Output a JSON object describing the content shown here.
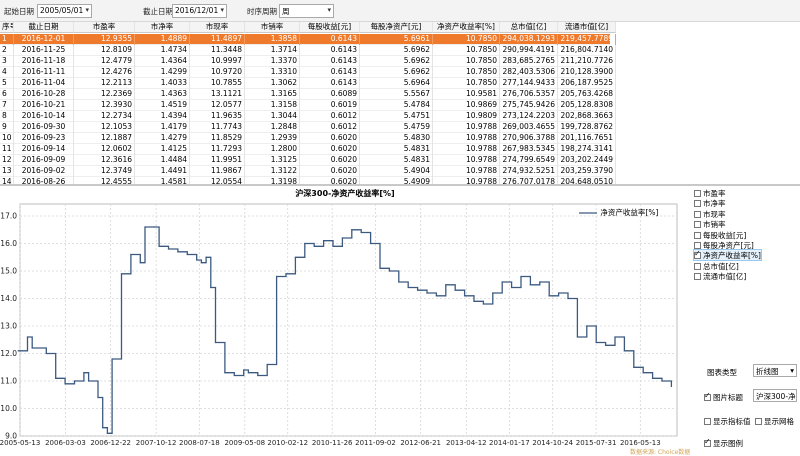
{
  "toolbar": {
    "start_label": "起始日期",
    "start_value": "2005/05/01",
    "end_label": "截止日期",
    "end_value": "2016/12/01",
    "period_label": "时序周期",
    "period_value": "周"
  },
  "table": {
    "columns": [
      "序号",
      "截止日期",
      "市盈率",
      "市净率",
      "市现率",
      "市销率",
      "每股收益[元]",
      "每股净资产[元]",
      "净资产收益率[%]",
      "总市值[亿]",
      "流通市值[亿]"
    ],
    "rows": [
      [
        "1",
        "2016-12-01",
        "12.9355",
        "1.4889",
        "11.4897",
        "1.3858",
        "0.6143",
        "5.6961",
        "10.7850",
        "294,038.1293",
        "219,457.7789"
      ],
      [
        "2",
        "2016-11-25",
        "12.8109",
        "1.4734",
        "11.3448",
        "1.3714",
        "0.6143",
        "5.6962",
        "10.7850",
        "290,994.4191",
        "216,804.7140"
      ],
      [
        "3",
        "2016-11-18",
        "12.4779",
        "1.4364",
        "10.9997",
        "1.3370",
        "0.6143",
        "5.6962",
        "10.7850",
        "283,685.2765",
        "211,210.7726"
      ],
      [
        "4",
        "2016-11-11",
        "12.4276",
        "1.4299",
        "10.9720",
        "1.3310",
        "0.6143",
        "5.6962",
        "10.7850",
        "282,403.5306",
        "210,128.3900"
      ],
      [
        "5",
        "2016-11-04",
        "12.2113",
        "1.4033",
        "10.7855",
        "1.3062",
        "0.6143",
        "5.6964",
        "10.7850",
        "277,144.9433",
        "206,187.9525"
      ],
      [
        "6",
        "2016-10-28",
        "12.2369",
        "1.4363",
        "13.1121",
        "1.3165",
        "0.6089",
        "5.5567",
        "10.9581",
        "276,706.5357",
        "205,763.4268"
      ],
      [
        "7",
        "2016-10-21",
        "12.3930",
        "1.4519",
        "12.0577",
        "1.3158",
        "0.6019",
        "5.4784",
        "10.9869",
        "275,745.9426",
        "205,128.8308"
      ],
      [
        "8",
        "2016-10-14",
        "12.2734",
        "1.4394",
        "11.9635",
        "1.3044",
        "0.6012",
        "5.4751",
        "10.9809",
        "273,124.2203",
        "202,868.3663"
      ],
      [
        "9",
        "2016-09-30",
        "12.1053",
        "1.4179",
        "11.7743",
        "1.2848",
        "0.6012",
        "5.4759",
        "10.9788",
        "269,003.4655",
        "199,728.8762"
      ],
      [
        "10",
        "2016-09-23",
        "12.1887",
        "1.4279",
        "11.8529",
        "1.2939",
        "0.6020",
        "5.4830",
        "10.9788",
        "270,906.3788",
        "201,116.7651"
      ],
      [
        "11",
        "2016-09-14",
        "12.0602",
        "1.4125",
        "11.7293",
        "1.2800",
        "0.6020",
        "5.4831",
        "10.9788",
        "267,983.5345",
        "198,274.3141"
      ],
      [
        "12",
        "2016-09-09",
        "12.3616",
        "1.4484",
        "11.9951",
        "1.3125",
        "0.6020",
        "5.4831",
        "10.9788",
        "274,799.6549",
        "203,202.2449"
      ],
      [
        "13",
        "2016-09-02",
        "12.3749",
        "1.4491",
        "11.9867",
        "1.3122",
        "0.6020",
        "5.4904",
        "10.9788",
        "274,932.5251",
        "203,259.3790"
      ],
      [
        "14",
        "2016-08-26",
        "12.4555",
        "1.4581",
        "12.0554",
        "1.3198",
        "0.6020",
        "5.4909",
        "10.9788",
        "276,707.0178",
        "204,648.0510"
      ]
    ]
  },
  "chart": {
    "title": "沪深300-净资产收益率[%]",
    "legend": "净资产收益率[%]",
    "line_color": "#3c5a80"
  },
  "chart_data": {
    "type": "line",
    "title": "沪深300-净资产收益率[%]",
    "xlabel": "",
    "ylabel": "",
    "ylim": [
      9.0,
      17.0
    ],
    "y_ticks": [
      "9.0",
      "10.0",
      "11.0",
      "12.0",
      "13.0",
      "14.0",
      "15.0",
      "16.0",
      "17.0"
    ],
    "x_ticks": [
      "2005-05-13",
      "2006-03-03",
      "2006-12-22",
      "2007-10-12",
      "2008-07-18",
      "2009-05-08",
      "2010-02-12",
      "2010-11-26",
      "2011-09-02",
      "2012-06-21",
      "2013-04-12",
      "2014-01-17",
      "2014-10-24",
      "2015-07-31",
      "2016-05-13"
    ],
    "grid": true,
    "series": [
      {
        "name": "净资产收益率[%]",
        "x": [
          "2005-05",
          "2005-07",
          "2005-08",
          "2005-11",
          "2006-01",
          "2006-03",
          "2006-05",
          "2006-07",
          "2006-08",
          "2006-10",
          "2006-11",
          "2006-12",
          "2007-01",
          "2007-03",
          "2007-05",
          "2007-07",
          "2007-08",
          "2007-10",
          "2007-11",
          "2008-01",
          "2008-03",
          "2008-05",
          "2008-07",
          "2008-08",
          "2008-09",
          "2008-10",
          "2008-11",
          "2009-01",
          "2009-03",
          "2009-05",
          "2009-06",
          "2009-08",
          "2009-10",
          "2009-12",
          "2010-02",
          "2010-04",
          "2010-06",
          "2010-08",
          "2010-10",
          "2010-12",
          "2011-02",
          "2011-04",
          "2011-06",
          "2011-08",
          "2011-10",
          "2011-12",
          "2012-02",
          "2012-04",
          "2012-06",
          "2012-08",
          "2012-10",
          "2012-12",
          "2013-02",
          "2013-04",
          "2013-06",
          "2013-08",
          "2013-10",
          "2013-12",
          "2014-02",
          "2014-04",
          "2014-06",
          "2014-08",
          "2014-10",
          "2014-12",
          "2015-02",
          "2015-04",
          "2015-06",
          "2015-08",
          "2015-10",
          "2015-12",
          "2016-02",
          "2016-04",
          "2016-06",
          "2016-08",
          "2016-10",
          "2016-12"
        ],
        "values": [
          12.1,
          12.6,
          12.2,
          12.0,
          11.1,
          10.9,
          11.0,
          11.3,
          11.0,
          10.4,
          9.3,
          9.1,
          11.8,
          14.9,
          15.6,
          15.3,
          16.6,
          16.6,
          15.9,
          15.8,
          15.7,
          15.6,
          15.4,
          15.3,
          15.5,
          14.4,
          12.4,
          11.3,
          11.2,
          11.4,
          11.3,
          11.2,
          11.6,
          14.8,
          14.9,
          15.5,
          16.0,
          15.9,
          16.1,
          15.9,
          16.2,
          16.5,
          16.4,
          16.0,
          15.1,
          15.0,
          14.6,
          14.4,
          14.3,
          14.2,
          14.1,
          14.5,
          14.3,
          14.1,
          13.9,
          13.8,
          14.2,
          14.6,
          14.4,
          14.8,
          14.5,
          14.6,
          14.1,
          14.2,
          14.0,
          12.6,
          13.0,
          12.4,
          12.3,
          12.6,
          12.1,
          11.5,
          11.3,
          11.1,
          11.0,
          10.8
        ]
      }
    ]
  },
  "side": {
    "items": [
      {
        "label": "市盈率",
        "checked": false
      },
      {
        "label": "市净率",
        "checked": false
      },
      {
        "label": "市现率",
        "checked": false
      },
      {
        "label": "市销率",
        "checked": false
      },
      {
        "label": "每股收益[元]",
        "checked": false
      },
      {
        "label": "每股净资产[元]",
        "checked": false
      },
      {
        "label": "净资产收益率[%]",
        "checked": true
      },
      {
        "label": "总市值[亿]",
        "checked": false
      },
      {
        "label": "流通市值[亿]",
        "checked": false
      }
    ],
    "chart_type_label": "图表类型",
    "chart_type_value": "折线图",
    "pic_title_label": "图片标题",
    "pic_title_value": "沪深300-净",
    "show_indicator_label": "显示指标值",
    "show_grid_label": "显示网格",
    "show_legend_label": "显示图例"
  },
  "footer_note": "数据来源: Choice数据"
}
